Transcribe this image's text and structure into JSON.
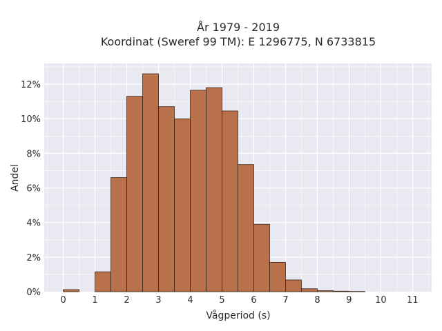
{
  "chart_data": {
    "type": "bar",
    "title_line1": "År 1979 - 2019",
    "title_line2": "Koordinat (Sweref 99 TM): E 1296775, N 6733815",
    "xlabel": "Vågperiod (s)",
    "ylabel": "Andel",
    "bin_width": 0.5,
    "x_ticks": [
      0,
      1,
      2,
      3,
      4,
      5,
      6,
      7,
      8,
      9,
      10,
      11
    ],
    "y_ticks": [
      0,
      2,
      4,
      6,
      8,
      10,
      12
    ],
    "y_tick_labels": [
      "0%",
      "2%",
      "4%",
      "6%",
      "8%",
      "10%",
      "12%"
    ],
    "xlim": [
      -0.6,
      11.6
    ],
    "ylim": [
      0,
      13.2
    ],
    "grid": true,
    "bins": [
      {
        "x": 0.0,
        "value": 0.12
      },
      {
        "x": 0.5,
        "value": 0.0
      },
      {
        "x": 1.0,
        "value": 1.15
      },
      {
        "x": 1.5,
        "value": 6.6
      },
      {
        "x": 2.0,
        "value": 11.3
      },
      {
        "x": 2.5,
        "value": 12.6
      },
      {
        "x": 3.0,
        "value": 10.7
      },
      {
        "x": 3.5,
        "value": 10.0
      },
      {
        "x": 4.0,
        "value": 11.65
      },
      {
        "x": 4.5,
        "value": 11.8
      },
      {
        "x": 5.0,
        "value": 10.45
      },
      {
        "x": 5.5,
        "value": 7.35
      },
      {
        "x": 6.0,
        "value": 3.9
      },
      {
        "x": 6.5,
        "value": 1.7
      },
      {
        "x": 7.0,
        "value": 0.68
      },
      {
        "x": 7.5,
        "value": 0.17
      },
      {
        "x": 8.0,
        "value": 0.06
      },
      {
        "x": 8.5,
        "value": 0.03
      },
      {
        "x": 9.0,
        "value": 0.015
      }
    ],
    "colors": {
      "bar_fill": "#b66a42",
      "bar_edge": "#3a2518",
      "plot_bg": "#e9e9f1",
      "grid": "#ffffff"
    }
  }
}
